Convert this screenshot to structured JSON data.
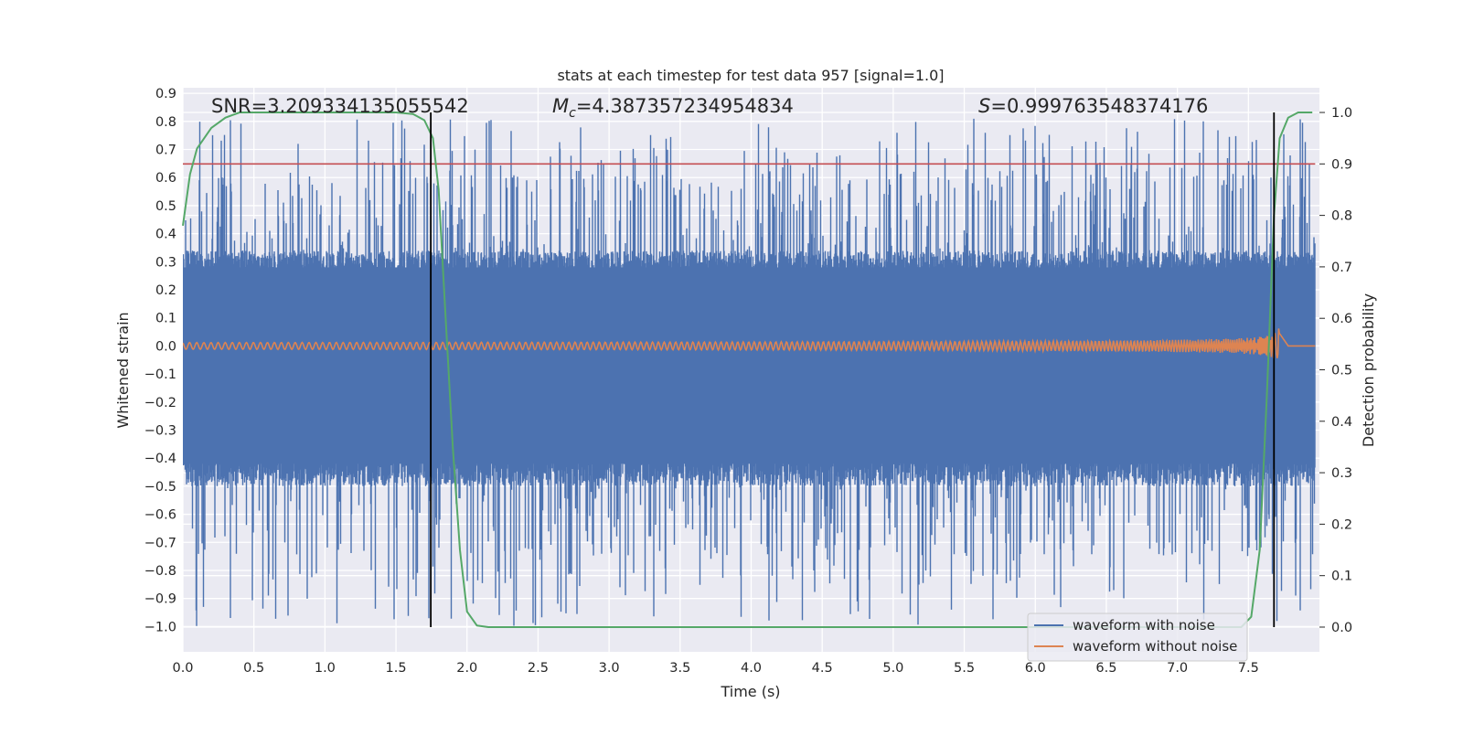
{
  "chart_data": {
    "type": "line",
    "title": "stats at each timestep for test data 957 [signal=1.0]",
    "xlabel": "Time (s)",
    "ylabel": "Whitened strain",
    "y2label": "Detection probability",
    "xlim": [
      0.0,
      8.0
    ],
    "ylim": [
      -1.09,
      0.92
    ],
    "y2lim": [
      -0.048,
      1.048
    ],
    "grid": true,
    "xticks": [
      "0.0",
      "0.5",
      "1.0",
      "1.5",
      "2.0",
      "2.5",
      "3.0",
      "3.5",
      "4.0",
      "4.5",
      "5.0",
      "5.5",
      "6.0",
      "6.5",
      "7.0",
      "7.5"
    ],
    "xtick_values": [
      0.0,
      0.5,
      1.0,
      1.5,
      2.0,
      2.5,
      3.0,
      3.5,
      4.0,
      4.5,
      5.0,
      5.5,
      6.0,
      6.5,
      7.0,
      7.5
    ],
    "yticks": [
      "0.9",
      "0.8",
      "0.7",
      "0.6",
      "0.5",
      "0.4",
      "0.3",
      "0.2",
      "0.1",
      "0.0",
      "−0.1",
      "−0.2",
      "−0.3",
      "−0.4",
      "−0.5",
      "−0.6",
      "−0.7",
      "−0.8",
      "−0.9",
      "−1.0"
    ],
    "ytick_values": [
      0.9,
      0.8,
      0.7,
      0.6,
      0.5,
      0.4,
      0.3,
      0.2,
      0.1,
      0.0,
      -0.1,
      -0.2,
      -0.3,
      -0.4,
      -0.5,
      -0.6,
      -0.7,
      -0.8,
      -0.9,
      -1.0
    ],
    "y2ticks": [
      "1.0",
      "0.9",
      "0.8",
      "0.7",
      "0.6",
      "0.5",
      "0.4",
      "0.3",
      "0.2",
      "0.1",
      "0.0"
    ],
    "y2tick_values": [
      1.0,
      0.9,
      0.8,
      0.7,
      0.6,
      0.5,
      0.4,
      0.3,
      0.2,
      0.1,
      0.0
    ],
    "annotations": {
      "snr": "SNR=3.209334135055542",
      "mc_symbol": "M",
      "mc_sub": "c",
      "mc_value": "=4.387357234954834",
      "s_symbol": "S",
      "s_value": "=0.999763548374176"
    },
    "legend": {
      "position": "lower-right",
      "entries": [
        {
          "label": "waveform with noise",
          "color": "#4c72b0"
        },
        {
          "label": "waveform without noise",
          "color": "#dd8452"
        }
      ]
    },
    "series": [
      {
        "name": "waveform with noise",
        "axis": "left",
        "color": "#4c72b0",
        "style": "dense noise",
        "typical_range": [
          -0.45,
          0.3
        ],
        "extreme_range": [
          -1.0,
          0.81
        ]
      },
      {
        "name": "waveform without noise",
        "axis": "left",
        "color": "#dd8452",
        "style": "chirp",
        "start_amplitude": 0.012,
        "peak_time": 7.72,
        "peak_amplitude": 0.085,
        "end_time": 7.78
      },
      {
        "name": "detection probability",
        "axis": "right",
        "color": "#55a868",
        "points": [
          [
            0.0,
            0.78
          ],
          [
            0.05,
            0.88
          ],
          [
            0.1,
            0.93
          ],
          [
            0.2,
            0.97
          ],
          [
            0.3,
            0.99
          ],
          [
            0.4,
            1.0
          ],
          [
            1.0,
            1.0
          ],
          [
            1.5,
            1.0
          ],
          [
            1.62,
            0.997
          ],
          [
            1.7,
            0.985
          ],
          [
            1.76,
            0.95
          ],
          [
            1.8,
            0.85
          ],
          [
            1.85,
            0.6
          ],
          [
            1.9,
            0.35
          ],
          [
            1.95,
            0.15
          ],
          [
            2.0,
            0.03
          ],
          [
            2.07,
            0.003
          ],
          [
            2.15,
            0.0
          ],
          [
            3.0,
            0.0
          ],
          [
            6.0,
            0.0
          ],
          [
            7.0,
            0.0
          ],
          [
            7.45,
            0.0
          ],
          [
            7.52,
            0.02
          ],
          [
            7.58,
            0.15
          ],
          [
            7.63,
            0.45
          ],
          [
            7.68,
            0.8
          ],
          [
            7.72,
            0.95
          ],
          [
            7.78,
            0.99
          ],
          [
            7.85,
            1.0
          ],
          [
            7.95,
            1.0
          ]
        ]
      }
    ],
    "hlines": [
      {
        "axis": "right",
        "value": 0.9,
        "color": "#c44e52"
      }
    ],
    "vlines": [
      {
        "x": 1.745,
        "color": "#000000"
      },
      {
        "x": 7.68,
        "color": "#000000"
      }
    ]
  }
}
